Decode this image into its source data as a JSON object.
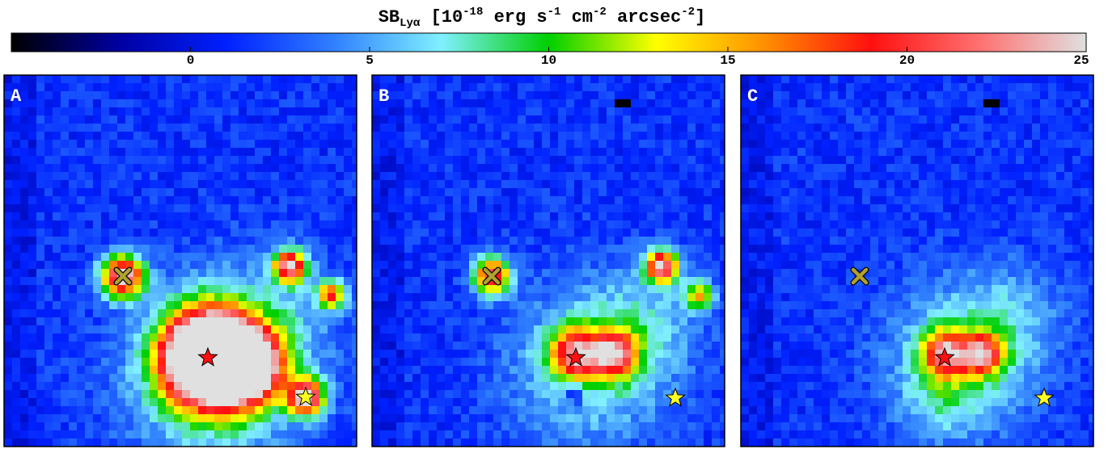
{
  "chart_data": {
    "type": "image-panels",
    "colorbar": {
      "label_parts": [
        "SB",
        "Lyα",
        " [10",
        "-18",
        " erg s",
        "-1",
        " cm",
        "-2",
        " arcsec",
        "-2",
        "]"
      ],
      "lim": [
        -5,
        25
      ],
      "ticks": [
        0,
        5,
        10,
        15,
        20,
        25
      ],
      "colors": [
        "#000000",
        "#0000a0",
        "#0020ff",
        "#3080ff",
        "#80f0ff",
        "#00d000",
        "#ffff00",
        "#ff9000",
        "#ff1010",
        "#ff7070",
        "#e0e0e0"
      ]
    },
    "panels": [
      {
        "label": "A"
      },
      {
        "label": "B"
      },
      {
        "label": "C"
      }
    ]
  }
}
